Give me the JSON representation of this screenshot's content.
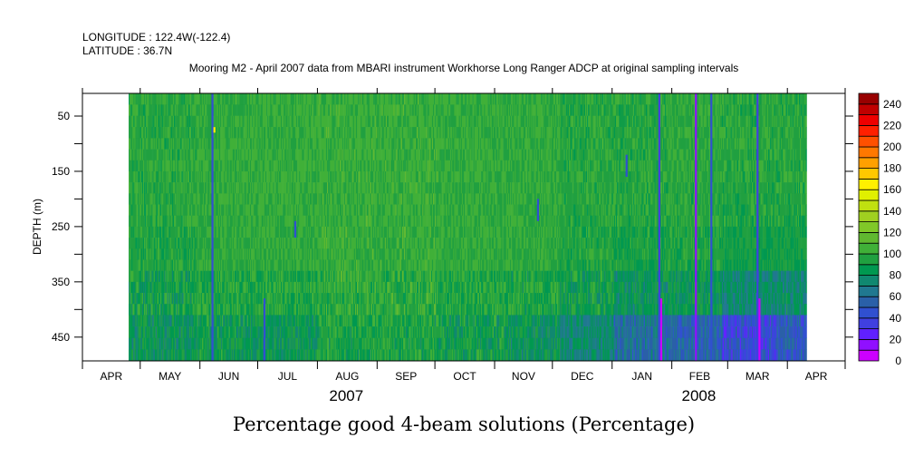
{
  "chart_data": {
    "type": "heatmap",
    "header": {
      "longitude": "LONGITUDE : 122.4W(-122.4)",
      "latitude": "LATITUDE : 36.7N",
      "subtitle": "Mooring M2 - April 2007 data from MBARI instrument Workhorse Long Ranger ADCP at original sampling intervals"
    },
    "title": "Percentage good 4-beam solutions (Percentage)",
    "ylabel": "DEPTH (m)",
    "ylim": [
      9,
      493
    ],
    "y_inverted": true,
    "y_ticks": [
      50,
      100,
      150,
      200,
      250,
      300,
      350,
      400,
      450
    ],
    "y_tick_labels": [
      "50",
      "",
      "150",
      "",
      "250",
      "",
      "350",
      "",
      "450"
    ],
    "x_range": [
      "2007-04-01",
      "2008-05-01"
    ],
    "x_ticks": [
      "2007-04-01",
      "2007-05-01",
      "2007-06-01",
      "2007-07-01",
      "2007-08-01",
      "2007-09-01",
      "2007-10-01",
      "2007-11-01",
      "2007-12-01",
      "2008-01-01",
      "2008-02-01",
      "2008-03-01",
      "2008-04-01",
      "2008-05-01"
    ],
    "x_tick_labels": [
      "APR",
      "MAY",
      "JUN",
      "JUL",
      "AUG",
      "SEP",
      "OCT",
      "NOV",
      "DEC",
      "JAN",
      "FEB",
      "MAR",
      "APR"
    ],
    "year_labels": [
      {
        "label": "2007",
        "date": "2007-08-16"
      },
      {
        "label": "2008",
        "date": "2008-02-15"
      }
    ],
    "data_start": "2007-04-25",
    "data_end": "2008-04-11",
    "bin_days": 7,
    "depth_band_edges": [
      9,
      90,
      170,
      250,
      330,
      410,
      493
    ],
    "weekly_values": [
      [
        100,
        100,
        100,
        98,
        95,
        88
      ],
      [
        100,
        100,
        100,
        98,
        95,
        88
      ],
      [
        100,
        100,
        100,
        98,
        95,
        88
      ],
      [
        100,
        100,
        100,
        98,
        95,
        88
      ],
      [
        100,
        100,
        100,
        98,
        95,
        88
      ],
      [
        102,
        103,
        103,
        102,
        100,
        92
      ],
      [
        102,
        103,
        103,
        102,
        100,
        92
      ],
      [
        102,
        103,
        103,
        102,
        100,
        92
      ],
      [
        102,
        103,
        103,
        102,
        100,
        92
      ],
      [
        104,
        104,
        104,
        103,
        100,
        90
      ],
      [
        104,
        104,
        104,
        103,
        100,
        90
      ],
      [
        104,
        104,
        104,
        103,
        100,
        90
      ],
      [
        104,
        104,
        104,
        103,
        100,
        90
      ],
      [
        104,
        104,
        104,
        103,
        100,
        90
      ],
      [
        105,
        105,
        105,
        105,
        104,
        98
      ],
      [
        105,
        105,
        105,
        105,
        104,
        98
      ],
      [
        105,
        105,
        105,
        105,
        104,
        98
      ],
      [
        105,
        105,
        105,
        105,
        104,
        98
      ],
      [
        105,
        105,
        105,
        105,
        104,
        98
      ],
      [
        105,
        105,
        105,
        105,
        104,
        98
      ],
      [
        105,
        105,
        105,
        105,
        104,
        98
      ],
      [
        105,
        105,
        105,
        105,
        104,
        98
      ],
      [
        105,
        105,
        105,
        105,
        104,
        98
      ],
      [
        104,
        104,
        104,
        103,
        100,
        94
      ],
      [
        104,
        104,
        104,
        103,
        100,
        94
      ],
      [
        104,
        104,
        104,
        103,
        100,
        94
      ],
      [
        104,
        104,
        104,
        103,
        100,
        94
      ],
      [
        104,
        104,
        104,
        103,
        100,
        94
      ],
      [
        103,
        103,
        103,
        102,
        98,
        88
      ],
      [
        103,
        103,
        103,
        102,
        98,
        88
      ],
      [
        103,
        103,
        103,
        102,
        98,
        88
      ],
      [
        103,
        103,
        103,
        102,
        98,
        88
      ],
      [
        100,
        100,
        100,
        98,
        94,
        80
      ],
      [
        100,
        100,
        100,
        98,
        94,
        80
      ],
      [
        100,
        100,
        100,
        98,
        94,
        80
      ],
      [
        100,
        100,
        100,
        98,
        94,
        80
      ],
      [
        100,
        100,
        99,
        96,
        88,
        65
      ],
      [
        100,
        100,
        99,
        96,
        88,
        65
      ],
      [
        100,
        100,
        99,
        96,
        88,
        65
      ],
      [
        100,
        100,
        99,
        96,
        88,
        65
      ],
      [
        102,
        102,
        101,
        98,
        90,
        60
      ],
      [
        102,
        102,
        101,
        98,
        90,
        60
      ],
      [
        102,
        102,
        101,
        98,
        90,
        60
      ],
      [
        102,
        102,
        101,
        98,
        90,
        60
      ],
      [
        100,
        100,
        98,
        94,
        80,
        45
      ],
      [
        100,
        100,
        98,
        94,
        80,
        45
      ],
      [
        100,
        100,
        98,
        94,
        80,
        45
      ],
      [
        100,
        100,
        98,
        94,
        80,
        45
      ],
      [
        100,
        100,
        98,
        94,
        82,
        55
      ],
      [
        100,
        100,
        98,
        94,
        82,
        55
      ],
      [
        100,
        100,
        98,
        94,
        82,
        55
      ]
    ],
    "streaks": [
      {
        "date": "2007-06-07",
        "depth": [
          9,
          493
        ],
        "value": 45
      },
      {
        "date": "2007-06-08",
        "depth": [
          70,
          80
        ],
        "value": 165
      },
      {
        "date": "2007-07-04",
        "depth": [
          380,
          493
        ],
        "value": 40
      },
      {
        "date": "2007-07-20",
        "depth": [
          240,
          270
        ],
        "value": 45
      },
      {
        "date": "2007-11-23",
        "depth": [
          200,
          240
        ],
        "value": 45
      },
      {
        "date": "2008-01-08",
        "depth": [
          120,
          160
        ],
        "value": 45
      },
      {
        "date": "2008-01-25",
        "depth": [
          9,
          493
        ],
        "value": 38
      },
      {
        "date": "2008-01-26",
        "depth": [
          380,
          493
        ],
        "value": 8
      },
      {
        "date": "2008-02-13",
        "depth": [
          9,
          493
        ],
        "value": 15
      },
      {
        "date": "2008-02-21",
        "depth": [
          9,
          493
        ],
        "value": 40
      },
      {
        "date": "2008-03-16",
        "depth": [
          9,
          493
        ],
        "value": 30
      },
      {
        "date": "2008-03-17",
        "depth": [
          380,
          493
        ],
        "value": 8
      }
    ],
    "colorbar": {
      "levels": [
        0,
        10,
        20,
        30,
        40,
        50,
        60,
        70,
        80,
        90,
        100,
        110,
        120,
        130,
        140,
        150,
        160,
        170,
        180,
        190,
        200,
        210,
        220,
        230,
        240,
        250
      ],
      "labels": [
        "0",
        "20",
        "40",
        "60",
        "80",
        "100",
        "120",
        "140",
        "160",
        "180",
        "200",
        "220",
        "240"
      ],
      "colors": [
        "#cc00ff",
        "#9010ff",
        "#6020ff",
        "#4040e0",
        "#3050d0",
        "#2a60a8",
        "#207890",
        "#108870",
        "#009850",
        "#20a040",
        "#40b038",
        "#60b830",
        "#80c828",
        "#a0d020",
        "#c0e010",
        "#e0f000",
        "#fff000",
        "#ffc800",
        "#ffa000",
        "#ff7800",
        "#ff5000",
        "#ff2000",
        "#ee0000",
        "#c00000",
        "#980000"
      ]
    }
  }
}
